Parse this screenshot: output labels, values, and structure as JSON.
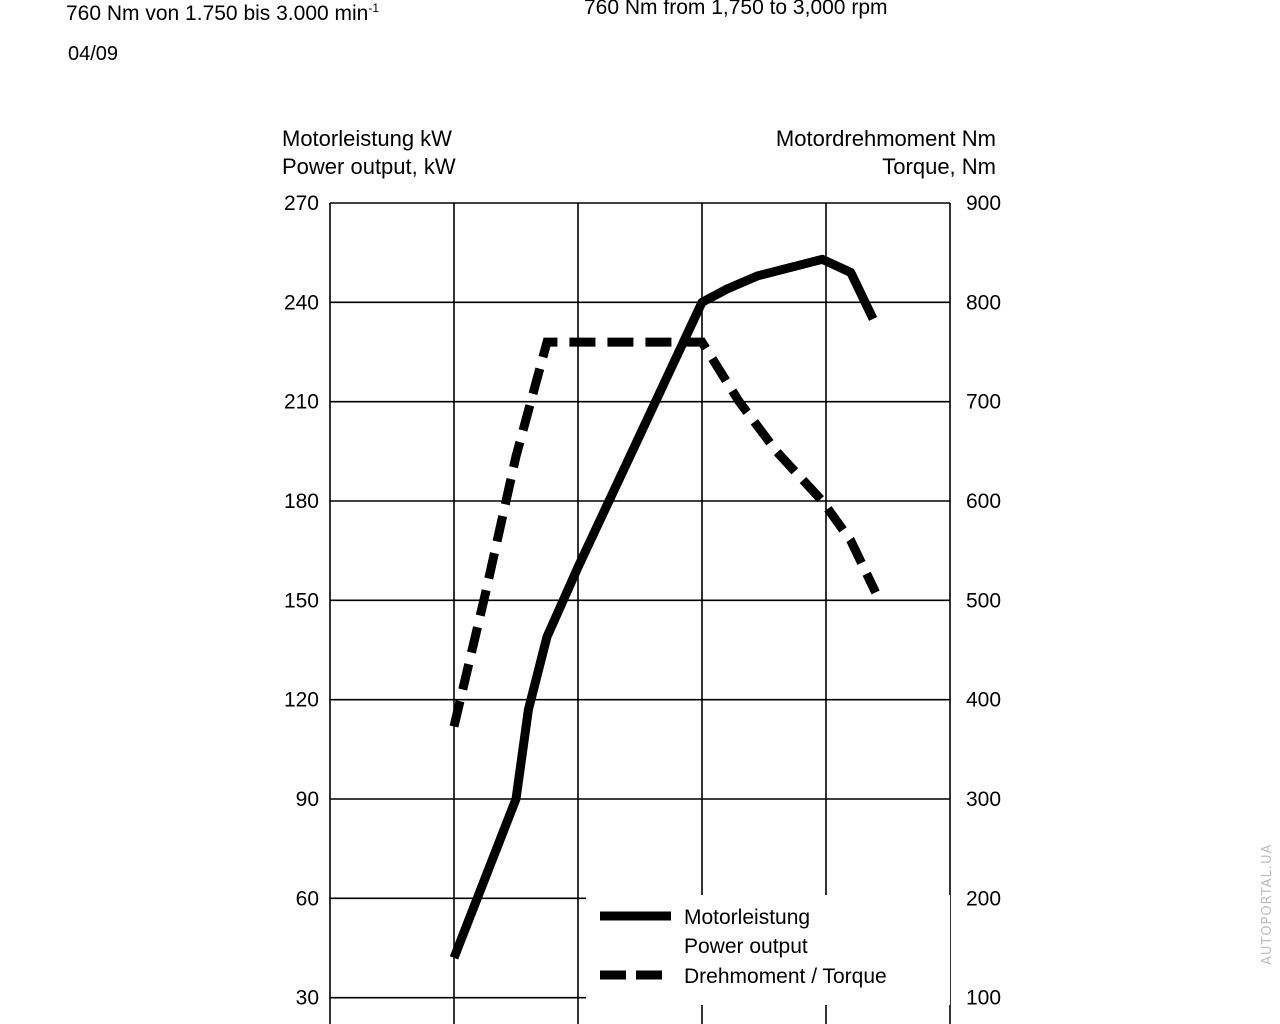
{
  "header": {
    "torque_de": "760 Nm von 1.750 bis 3.000 min",
    "torque_de_superscript": "-1",
    "torque_en": "760 Nm from 1,750 to 3,000 rpm",
    "date": "04/09"
  },
  "watermark": "AUTOPORTAL.UA",
  "colors": {
    "line": "#000000",
    "grid": "#000000",
    "background": "#ffffff",
    "watermark": "#bdbdbd"
  },
  "chart_data": {
    "type": "line",
    "left_axis": {
      "title_de": "Motorleistung kW",
      "title_en": "Power output, kW",
      "ticks": [
        30,
        60,
        90,
        120,
        150,
        180,
        210,
        240,
        270
      ],
      "tick_labels": [
        "30",
        "60",
        "90",
        "120",
        "150",
        "180",
        "210",
        "240",
        "270"
      ],
      "range": [
        30,
        270
      ]
    },
    "right_axis": {
      "title_de": "Motordrehmoment Nm",
      "title_en": "Torque, Nm",
      "ticks": [
        100,
        200,
        300,
        400,
        500,
        600,
        700,
        800,
        900
      ],
      "tick_labels": [
        "100",
        "200",
        "300",
        "400",
        "500",
        "600",
        "700",
        "800",
        "900"
      ],
      "range": [
        100,
        900
      ]
    },
    "x_axis": {
      "gridline_positions": [
        0,
        1,
        2,
        3,
        4,
        5
      ],
      "range": [
        0,
        5
      ],
      "tick_labels_visible": false
    },
    "grid": true,
    "legend_position": "bottom-right",
    "series": [
      {
        "name": "Motorleistung",
        "name_en": "Power output",
        "axis": "left",
        "style": "solid",
        "x": [
          1.0,
          1.5,
          1.6,
          1.75,
          2.0,
          2.5,
          3.0,
          3.2,
          3.45,
          3.97,
          4.2,
          4.38
        ],
        "y": [
          42,
          90,
          117,
          139,
          160,
          200,
          240,
          244,
          248,
          253,
          249,
          235
        ]
      },
      {
        "name": "Drehmoment / Torque",
        "axis": "right",
        "style": "dashed",
        "x": [
          1.0,
          1.25,
          1.5,
          1.75,
          2.0,
          2.5,
          3.0,
          3.3,
          3.6,
          3.97,
          4.2,
          4.4
        ],
        "y": [
          373,
          505,
          645,
          760,
          760,
          760,
          760,
          700,
          650,
          600,
          560,
          508
        ]
      }
    ]
  }
}
